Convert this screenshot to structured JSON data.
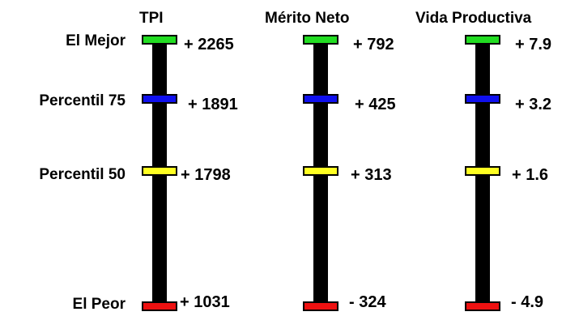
{
  "rows": [
    {
      "label": "El Mejor",
      "color": "#22dd22"
    },
    {
      "label": "Percentil 75",
      "color": "#1010ee"
    },
    {
      "label": "Percentil 50",
      "color": "#ffff22"
    },
    {
      "label": "El Peor",
      "color": "#ee1111"
    }
  ],
  "columns": [
    {
      "title": "TPI",
      "values": [
        "+ 2265",
        "+ 1891",
        "+ 1798",
        "+ 1031"
      ]
    },
    {
      "title": "Mérito Neto",
      "values": [
        "+ 792",
        "+ 425",
        "+ 313",
        "- 324"
      ]
    },
    {
      "title": "Vida Productiva",
      "values": [
        "+ 7.9",
        "+ 3.2",
        "+ 1.6",
        "- 4.9"
      ]
    }
  ]
}
